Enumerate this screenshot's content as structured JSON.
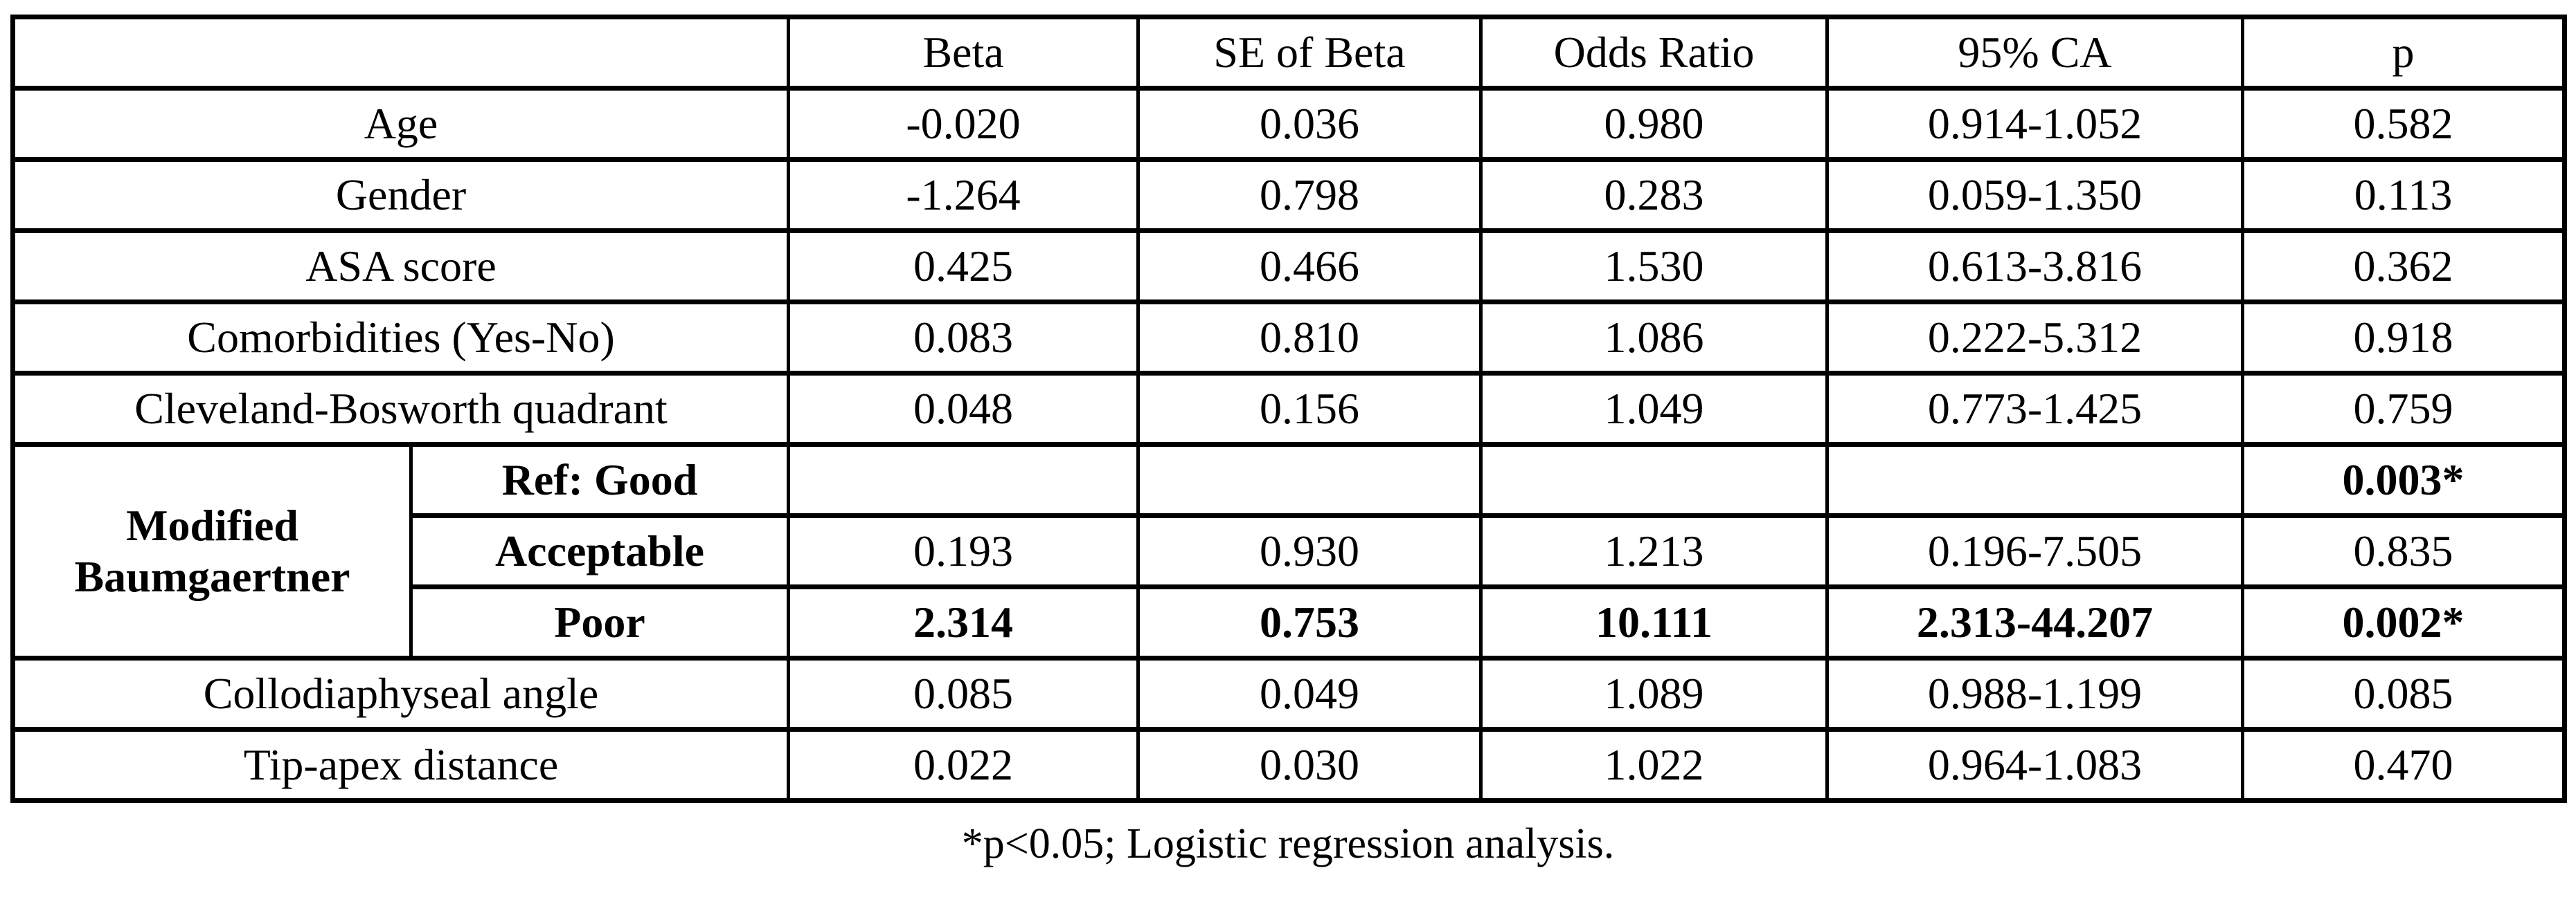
{
  "table": {
    "header": {
      "label": "",
      "beta": "Beta",
      "se": "SE of Beta",
      "or": "Odds Ratio",
      "ci": "95% CA",
      "p": "p"
    },
    "rows": [
      {
        "label": "Age",
        "beta": "-0.020",
        "se": "0.036",
        "or": "0.980",
        "ci": "0.914-1.052",
        "p": "0.582"
      },
      {
        "label": "Gender",
        "beta": "-1.264",
        "se": "0.798",
        "or": "0.283",
        "ci": "0.059-1.350",
        "p": "0.113"
      },
      {
        "label": "ASA score",
        "beta": "0.425",
        "se": "0.466",
        "or": "1.530",
        "ci": "0.613-3.816",
        "p": "0.362"
      },
      {
        "label": "Comorbidities (Yes-No)",
        "beta": "0.083",
        "se": "0.810",
        "or": "1.086",
        "ci": "0.222-5.312",
        "p": "0.918"
      },
      {
        "label": "Cleveland-Bosworth quadrant",
        "beta": "0.048",
        "se": "0.156",
        "or": "1.049",
        "ci": "0.773-1.425",
        "p": "0.759"
      }
    ],
    "group": {
      "label_line1": "Modified",
      "label_line2": "Baumgaertner",
      "rows": [
        {
          "sublabel": "Ref: Good",
          "beta": "",
          "se": "",
          "or": "",
          "ci": "",
          "p": "0.003*"
        },
        {
          "sublabel": "Acceptable",
          "beta": "0.193",
          "se": "0.930",
          "or": "1.213",
          "ci": "0.196-7.505",
          "p": "0.835"
        },
        {
          "sublabel": "Poor",
          "beta": "2.314",
          "se": "0.753",
          "or": "10.111",
          "ci": "2.313-44.207",
          "p": "0.002*"
        }
      ]
    },
    "tail_rows": [
      {
        "label": "Collodiaphyseal angle",
        "beta": "0.085",
        "se": "0.049",
        "or": "1.089",
        "ci": "0.988-1.199",
        "p": "0.085"
      },
      {
        "label": "Tip-apex distance",
        "beta": "0.022",
        "se": "0.030",
        "or": "1.022",
        "ci": "0.964-1.083",
        "p": "0.470"
      }
    ]
  },
  "footnote": "*p<0.05; Logistic regression analysis."
}
